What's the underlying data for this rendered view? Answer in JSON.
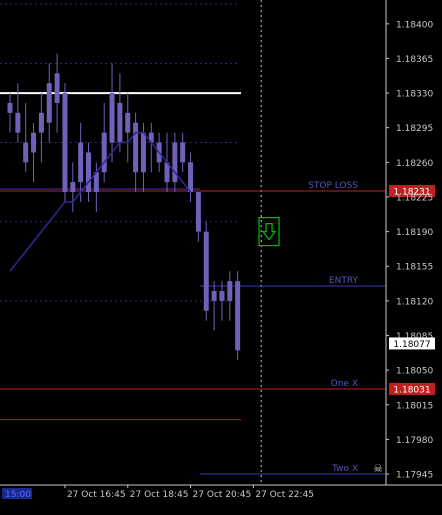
{
  "chart_data": {
    "type": "candlestick",
    "ylim": [
      1.1794,
      1.1842
    ],
    "y_ticks": [
      "1.18400",
      "1.18365",
      "1.18330",
      "1.18295",
      "1.18260",
      "1.18225",
      "1.18190",
      "1.18155",
      "1.18120",
      "1.18085",
      "1.18050",
      "1.18015",
      "1.17980",
      "1.17945"
    ],
    "x_ticks": [
      {
        "label": "15:00",
        "pos": 0
      },
      {
        "label": "27 Oct 16:45",
        "pos": 7
      },
      {
        "label": "27 Oct 18:45",
        "pos": 15
      },
      {
        "label": "27 Oct 20:45",
        "pos": 23
      },
      {
        "label": "27 Oct 22:45",
        "pos": 31
      }
    ],
    "candles": [
      {
        "o": 1.1831,
        "h": 1.1833,
        "l": 1.1829,
        "c": 1.1832
      },
      {
        "o": 1.1831,
        "h": 1.1834,
        "l": 1.1828,
        "c": 1.1829
      },
      {
        "o": 1.1828,
        "h": 1.1832,
        "l": 1.1825,
        "c": 1.1826
      },
      {
        "o": 1.1827,
        "h": 1.183,
        "l": 1.1824,
        "c": 1.1829
      },
      {
        "o": 1.1829,
        "h": 1.1833,
        "l": 1.1826,
        "c": 1.1831
      },
      {
        "o": 1.183,
        "h": 1.1836,
        "l": 1.1828,
        "c": 1.1834
      },
      {
        "o": 1.1832,
        "h": 1.1837,
        "l": 1.1829,
        "c": 1.1835
      },
      {
        "o": 1.1833,
        "h": 1.1834,
        "l": 1.1822,
        "c": 1.1823
      },
      {
        "o": 1.1823,
        "h": 1.1826,
        "l": 1.1821,
        "c": 1.1824
      },
      {
        "o": 1.1824,
        "h": 1.183,
        "l": 1.1822,
        "c": 1.1828
      },
      {
        "o": 1.1827,
        "h": 1.1828,
        "l": 1.1822,
        "c": 1.1823
      },
      {
        "o": 1.1823,
        "h": 1.1826,
        "l": 1.1821,
        "c": 1.1825
      },
      {
        "o": 1.1825,
        "h": 1.1832,
        "l": 1.1824,
        "c": 1.1829
      },
      {
        "o": 1.1828,
        "h": 1.1836,
        "l": 1.1826,
        "c": 1.1833
      },
      {
        "o": 1.1832,
        "h": 1.1835,
        "l": 1.1827,
        "c": 1.1828
      },
      {
        "o": 1.1829,
        "h": 1.1833,
        "l": 1.1826,
        "c": 1.1831
      },
      {
        "o": 1.183,
        "h": 1.1831,
        "l": 1.1823,
        "c": 1.1825
      },
      {
        "o": 1.1825,
        "h": 1.183,
        "l": 1.1823,
        "c": 1.1829
      },
      {
        "o": 1.1829,
        "h": 1.183,
        "l": 1.1825,
        "c": 1.1828
      },
      {
        "o": 1.1828,
        "h": 1.1829,
        "l": 1.1825,
        "c": 1.1826
      },
      {
        "o": 1.1826,
        "h": 1.1829,
        "l": 1.1823,
        "c": 1.1824
      },
      {
        "o": 1.1824,
        "h": 1.1829,
        "l": 1.1823,
        "c": 1.1828
      },
      {
        "o": 1.1828,
        "h": 1.1829,
        "l": 1.1825,
        "c": 1.1826
      },
      {
        "o": 1.1826,
        "h": 1.1827,
        "l": 1.1822,
        "c": 1.1823
      },
      {
        "o": 1.1823,
        "h": 1.1823,
        "l": 1.1818,
        "c": 1.1819
      },
      {
        "o": 1.1819,
        "h": 1.182,
        "l": 1.181,
        "c": 1.1811
      },
      {
        "o": 1.1812,
        "h": 1.1814,
        "l": 1.1809,
        "c": 1.1813
      },
      {
        "o": 1.1813,
        "h": 1.1814,
        "l": 1.181,
        "c": 1.1812
      },
      {
        "o": 1.1812,
        "h": 1.1815,
        "l": 1.181,
        "c": 1.1814
      },
      {
        "o": 1.1814,
        "h": 1.1815,
        "l": 1.1806,
        "c": 1.1807
      }
    ],
    "moving_average": [
      1.1815,
      1.1816,
      1.1817,
      1.1818,
      1.1819,
      1.182,
      1.1821,
      1.1822,
      1.1822,
      1.1823,
      1.1824,
      1.1825,
      1.1826,
      1.1827,
      1.1828,
      1.1828,
      1.1829,
      1.1829,
      1.1828,
      1.1827,
      1.1826,
      1.1825,
      1.1824,
      1.1823
    ],
    "grid_levels": [
      1.1842,
      1.1836,
      1.1828,
      1.182,
      1.1812
    ],
    "white_level": 1.1833,
    "lower_red_level": 1.18,
    "vline_index": 32,
    "arrow_marker": {
      "x_index": 33,
      "price": 1.1819,
      "icon": "down-arrow-icon",
      "color": "#00c000"
    },
    "levels": [
      {
        "label": "STOP LOSS",
        "price": 1.18231,
        "price_label": "1.18231",
        "color": "#c02020",
        "label_color": "#5555bb"
      },
      {
        "label": "ENTRY",
        "price": 1.18135,
        "price_label": "",
        "color": "#3a3ab0",
        "label_color": "#5555bb"
      },
      {
        "label": "One X",
        "price": 1.18031,
        "price_label": "1.18031",
        "color": "#c02020",
        "label_color": "#5555bb"
      },
      {
        "label": "Two X",
        "price": 1.17945,
        "price_label": "",
        "color": "#3a3ab0",
        "label_color": "#5555bb"
      }
    ],
    "current_price": "1.18077",
    "colors": {
      "candle": "#7060b8",
      "ma": "#2a2a9a",
      "grid": "#303060",
      "axis": "#c8c8c8",
      "text": "#c8c8c8",
      "level_label": "#5555bb"
    }
  }
}
